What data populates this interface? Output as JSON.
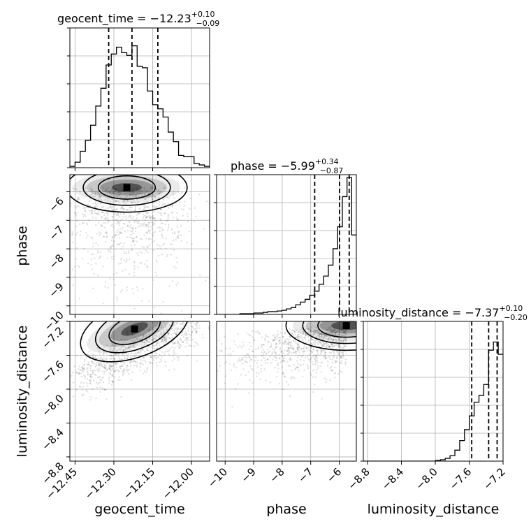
{
  "chart_data": {
    "type": "corner",
    "parameters": [
      "geocent_time",
      "phase",
      "luminosity_distance"
    ],
    "axis_labels": [
      "geocent_time",
      "phase",
      "luminosity_distance"
    ],
    "ranges": {
      "geocent_time": [
        -12.47,
        -11.93
      ],
      "phase": [
        -10.3,
        -5.4
      ],
      "luminosity_distance": [
        -8.85,
        -7.2
      ]
    },
    "ticks": {
      "geocent_time": [
        -12.45,
        -12.3,
        -12.15,
        -12.0
      ],
      "phase": [
        -10,
        -9,
        -8,
        -7,
        -6
      ],
      "luminosity_distance": [
        -8.8,
        -8.4,
        -8.0,
        -7.6,
        -7.2
      ]
    },
    "tick_labels": {
      "geocent_time": [
        "−12.45",
        "−12.30",
        "−12.15",
        "−12.00"
      ],
      "phase": [
        "−10",
        "−9",
        "−8",
        "−7",
        "−6"
      ],
      "luminosity_distance": [
        "−8.8",
        "−8.4",
        "−8.0",
        "−7.6",
        "−7.2"
      ]
    },
    "titles": [
      {
        "name": "geocent_time",
        "median": "−12.23",
        "plus": "+0.10",
        "minus": "−0.09"
      },
      {
        "name": "phase",
        "median": "−5.99",
        "plus": "+0.34",
        "minus": "−0.87"
      },
      {
        "name": "luminosity_distance",
        "median": "−7.37",
        "plus": "+0.10",
        "minus": "−0.20"
      }
    ],
    "quantiles": {
      "geocent_time": [
        -12.32,
        -12.23,
        -12.13
      ],
      "phase": [
        -6.86,
        -5.99,
        -5.65
      ],
      "luminosity_distance": [
        -7.57,
        -7.37,
        -7.27
      ]
    },
    "histograms": {
      "geocent_time": [
        0.01,
        0.04,
        0.12,
        0.2,
        0.31,
        0.45,
        0.58,
        0.75,
        0.83,
        0.88,
        0.84,
        0.82,
        0.89,
        0.74,
        0.73,
        0.56,
        0.46,
        0.43,
        0.37,
        0.26,
        0.19,
        0.09,
        0.08,
        0.08,
        0.03,
        0.02,
        0.01
      ],
      "phase": [
        0.0,
        0.0,
        0.0,
        0.0,
        0.0,
        0.005,
        0.005,
        0.005,
        0.01,
        0.01,
        0.015,
        0.02,
        0.02,
        0.025,
        0.03,
        0.04,
        0.05,
        0.07,
        0.09,
        0.11,
        0.14,
        0.17,
        0.22,
        0.28,
        0.36,
        0.48,
        0.64,
        0.86,
        1.0,
        0.58
      ],
      "luminosity_distance": [
        0.0,
        0.0,
        0.0,
        0.0,
        0.0,
        0.0,
        0.0,
        0.0,
        0.0,
        0.0,
        0.0,
        0.0,
        0.0,
        0.0,
        0.0,
        0.005,
        0.01,
        0.02,
        0.04,
        0.08,
        0.15,
        0.23,
        0.33,
        0.43,
        0.48,
        0.56,
        0.81,
        0.87,
        0.78
      ]
    },
    "density_modes": [
      {
        "x": "geocent_time",
        "y": "phase",
        "cx": -12.25,
        "cy": -5.85
      },
      {
        "x": "geocent_time",
        "y": "luminosity_distance",
        "cx": -12.22,
        "cy": -7.29
      },
      {
        "x": "phase",
        "y": "luminosity_distance",
        "cx": -5.75,
        "cy": -7.25
      }
    ],
    "grid": true
  }
}
